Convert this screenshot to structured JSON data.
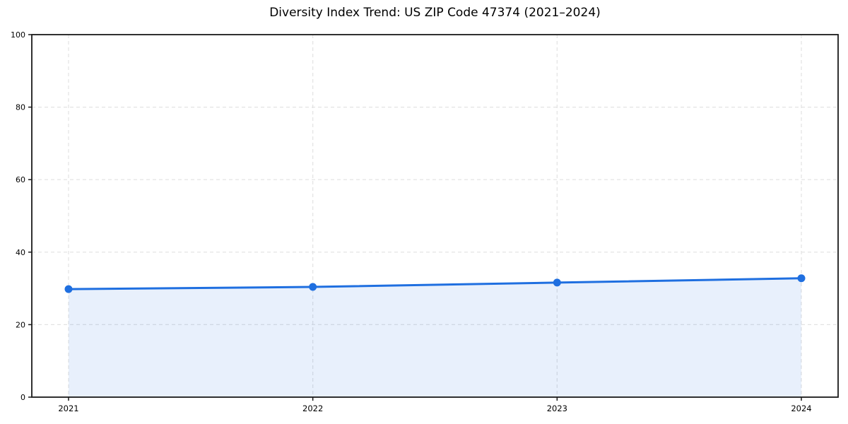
{
  "chart_data": {
    "type": "area",
    "title": "Diversity Index Trend: US ZIP Code 47374 (2021–2024)",
    "categories": [
      "2021",
      "2022",
      "2023",
      "2024"
    ],
    "values": [
      29.8,
      30.4,
      31.6,
      32.8
    ],
    "xlabel": "",
    "ylabel": "",
    "ylim": [
      0,
      100
    ],
    "ytick_step": 20,
    "ytick_labels": [
      "0",
      "20",
      "40",
      "60",
      "80",
      "100"
    ],
    "grid": "dashed-both-axes",
    "legend_position": "none",
    "colors": {
      "line": "#1f6fe0",
      "marker": "#1f6fe0",
      "fill": "rgba(31,111,224,0.10)",
      "grid": "#e2e2e2",
      "axis": "#1a1a1a",
      "text": "#000000",
      "background": "#ffffff"
    }
  }
}
